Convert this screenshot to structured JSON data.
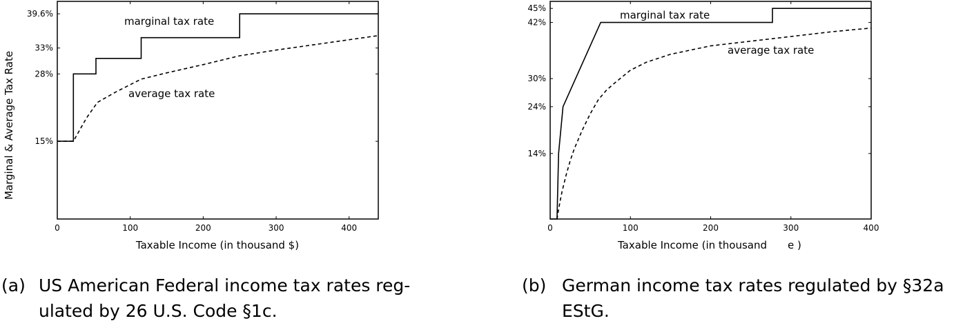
{
  "chart_data": [
    {
      "type": "line",
      "caption_label": "(a)",
      "caption_text_line1": "US American Federal income tax rates reg-",
      "caption_text_line2": "ulated by 26 U.S. Code §1c.",
      "xlabel": "Taxable Income (in thousand $)",
      "ylabel": "Marginal & Average Tax Rate",
      "xlim": [
        0,
        440
      ],
      "ylim": [
        0,
        42
      ],
      "xticks": [
        0,
        100,
        200,
        300,
        400
      ],
      "yticks": [
        {
          "value": 15,
          "label": "15%"
        },
        {
          "value": 28,
          "label": "28%"
        },
        {
          "value": 33,
          "label": "33%"
        },
        {
          "value": 39.6,
          "label": "39.6%"
        }
      ],
      "series": [
        {
          "name": "marginal tax rate",
          "style": "solid",
          "x": [
            0,
            22,
            22,
            53,
            53,
            115,
            115,
            250,
            250,
            440
          ],
          "y": [
            15,
            15,
            28,
            28,
            31,
            31,
            35,
            35,
            39.6,
            39.6
          ]
        },
        {
          "name": "average tax rate",
          "style": "dashed",
          "x": [
            0,
            22,
            30,
            40,
            55,
            80,
            115,
            150,
            200,
            250,
            300,
            350,
            400,
            440
          ],
          "y": [
            15,
            15,
            17,
            19.5,
            22.5,
            24.5,
            27,
            28.2,
            29.8,
            31.5,
            32.6,
            33.6,
            34.6,
            35.4
          ]
        }
      ]
    },
    {
      "type": "line",
      "caption_label": "(b)",
      "caption_text_line1": "German income tax rates regulated by §32a",
      "caption_text_line2": "EStG.",
      "xlabel": "Taxable Income (in thousand",
      "xlabel_unit": "e",
      "xlabel_close": ")",
      "ylabel": "",
      "xlim": [
        0,
        400
      ],
      "ylim": [
        0,
        46.5
      ],
      "xticks": [
        0,
        100,
        200,
        300,
        400
      ],
      "yticks": [
        {
          "value": 14,
          "label": "14%"
        },
        {
          "value": 24,
          "label": "24%"
        },
        {
          "value": 30,
          "label": "30%"
        },
        {
          "value": 42,
          "label": "42%"
        },
        {
          "value": 45,
          "label": "45%"
        }
      ],
      "series": [
        {
          "name": "marginal tax rate",
          "style": "solid",
          "x": [
            0,
            8.5,
            8.5,
            10.5,
            16,
            63,
            277,
            277,
            400
          ],
          "y": [
            0,
            0,
            0,
            14,
            24,
            42,
            42,
            45,
            45
          ]
        },
        {
          "name": "average tax rate",
          "style": "dashed",
          "x": [
            8.5,
            10,
            12,
            15,
            20,
            25,
            30,
            40,
            50,
            60,
            70,
            80,
            100,
            120,
            150,
            200,
            250,
            300,
            350,
            400
          ],
          "y": [
            0,
            1.5,
            3.5,
            6,
            9.5,
            12.5,
            15,
            19,
            22.5,
            25.5,
            27.5,
            29,
            31.8,
            33.5,
            35.2,
            37,
            38,
            39,
            40,
            40.8
          ]
        }
      ]
    }
  ]
}
